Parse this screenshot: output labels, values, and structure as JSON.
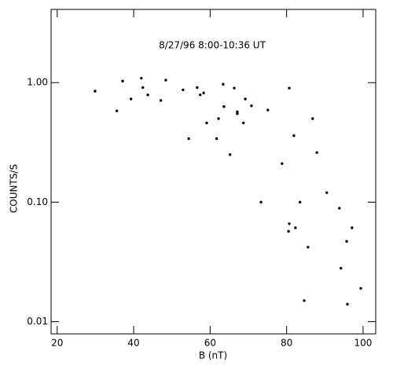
{
  "chart_data": {
    "type": "scatter",
    "title": "8/27/96  8:00-10:36 UT",
    "xlabel": "B (nT)",
    "ylabel": "COUNTS/S",
    "x": [
      29.9,
      35.6,
      37.1,
      39.3,
      42.0,
      42.4,
      43.7,
      47.1,
      48.4,
      52.9,
      54.4,
      56.6,
      57.4,
      58.3,
      59.1,
      61.7,
      62.2,
      63.4,
      63.6,
      65.2,
      66.3,
      67.1,
      67.1,
      68.7,
      69.2,
      70.8,
      73.3,
      75.1,
      78.8,
      80.7,
      80.5,
      80.7,
      81.9,
      82.3,
      83.5,
      84.6,
      85.6,
      86.8,
      87.9,
      90.5,
      93.8,
      94.2,
      95.7,
      95.9,
      97.1,
      99.4
    ],
    "values": [
      0.85,
      0.58,
      1.03,
      0.73,
      1.09,
      0.91,
      0.79,
      0.71,
      1.05,
      0.87,
      0.34,
      0.91,
      0.79,
      0.82,
      0.46,
      0.34,
      0.5,
      0.97,
      0.63,
      0.25,
      0.9,
      0.57,
      0.55,
      0.46,
      0.73,
      0.64,
      0.1,
      0.59,
      0.21,
      0.9,
      0.057,
      0.066,
      0.36,
      0.061,
      0.1,
      0.015,
      0.042,
      0.5,
      0.26,
      0.12,
      0.089,
      0.028,
      0.047,
      0.014,
      0.061,
      0.019
    ],
    "color": "#000000",
    "xlim": [
      18.4,
      103.3
    ],
    "xticks": [
      20,
      40,
      60,
      80,
      100
    ],
    "ylim": [
      0.0079,
      4.1
    ],
    "yscale": "log",
    "yticks": [
      {
        "value": 1,
        "label": "1.00"
      },
      {
        "value": 0.1,
        "label": "0.10"
      },
      {
        "value": 0.01,
        "label": "0.01"
      }
    ]
  }
}
